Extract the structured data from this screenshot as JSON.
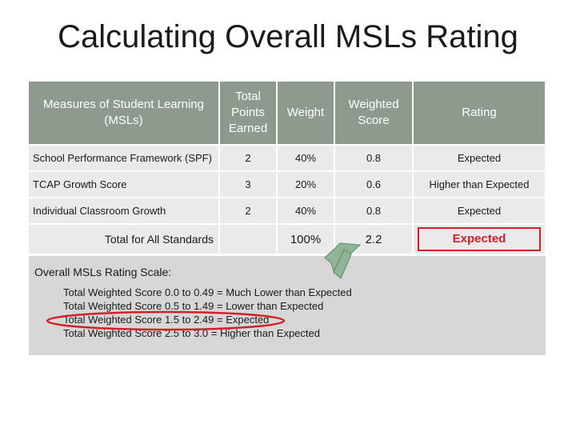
{
  "title": "Calculating Overall MSLs Rating",
  "table": {
    "headers": {
      "measure_line1": "Measures of Student Learning",
      "measure_line2": "(MSLs)",
      "points_line1": "Total",
      "points_line2": "Points",
      "points_line3": "Earned",
      "weight": "Weight",
      "weighted_line1": "Weighted",
      "weighted_line2": "Score",
      "rating": "Rating"
    },
    "rows": [
      {
        "measure": "School Performance Framework (SPF)",
        "points": "2",
        "weight": "40%",
        "weighted": "0.8",
        "rating": "Expected"
      },
      {
        "measure": "TCAP Growth Score",
        "points": "3",
        "weight": "20%",
        "weighted": "0.6",
        "rating": "Higher than Expected"
      },
      {
        "measure": "Individual Classroom Growth",
        "points": "2",
        "weight": "40%",
        "weighted": "0.8",
        "rating": "Expected"
      }
    ],
    "total": {
      "label": "Total for All Standards",
      "weight": "100%",
      "weighted": "2.2",
      "rating": "Expected"
    }
  },
  "scale": {
    "title": "Overall MSLs Rating Scale:",
    "lines": [
      "Total Weighted Score 0.0 to 0.49 = Much Lower than Expected",
      "Total Weighted Score 0.5 to 1.49 = Lower than Expected",
      "Total Weighted Score 1.5 to 2.49 = Expected",
      "Total Weighted Score 2.5 to 3.0 = Higher than Expected"
    ]
  },
  "colors": {
    "header_bg": "#8d9a8d",
    "row_bg": "#eaeaea",
    "scale_bg": "#d7d7d7",
    "highlight_red": "#d2202a",
    "arrow_green": "#8fb596"
  }
}
